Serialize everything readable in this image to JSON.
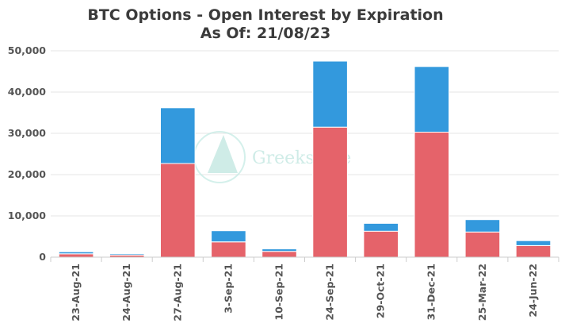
{
  "chart_data": {
    "type": "bar",
    "stacked": true,
    "title": "BTC Options - Open Interest by Expiration",
    "subtitle": "As Of: 21/08/23",
    "xlabel": "",
    "ylabel": "",
    "ylim": [
      0,
      50000
    ],
    "yticks": [
      "0",
      "10,000",
      "20,000",
      "30,000",
      "40,000",
      "50,000"
    ],
    "grid": true,
    "categories": [
      "23-Aug-21",
      "24-Aug-21",
      "27-Aug-21",
      "3-Sep-21",
      "10-Sep-21",
      "24-Sep-21",
      "29-Oct-21",
      "31-Dec-21",
      "25-Mar-22",
      "24-Jun-22"
    ],
    "series": [
      {
        "color": "#e5636a",
        "values": [
          800,
          500,
          22700,
          3700,
          1400,
          31500,
          6300,
          30300,
          6100,
          2800
        ]
      },
      {
        "color": "#3399dd",
        "values": [
          500,
          300,
          13500,
          2700,
          600,
          16000,
          1900,
          15900,
          3000,
          1200
        ]
      }
    ]
  },
  "watermark": {
    "text": "Greeksl.ive",
    "color": "#bfe6e0"
  }
}
